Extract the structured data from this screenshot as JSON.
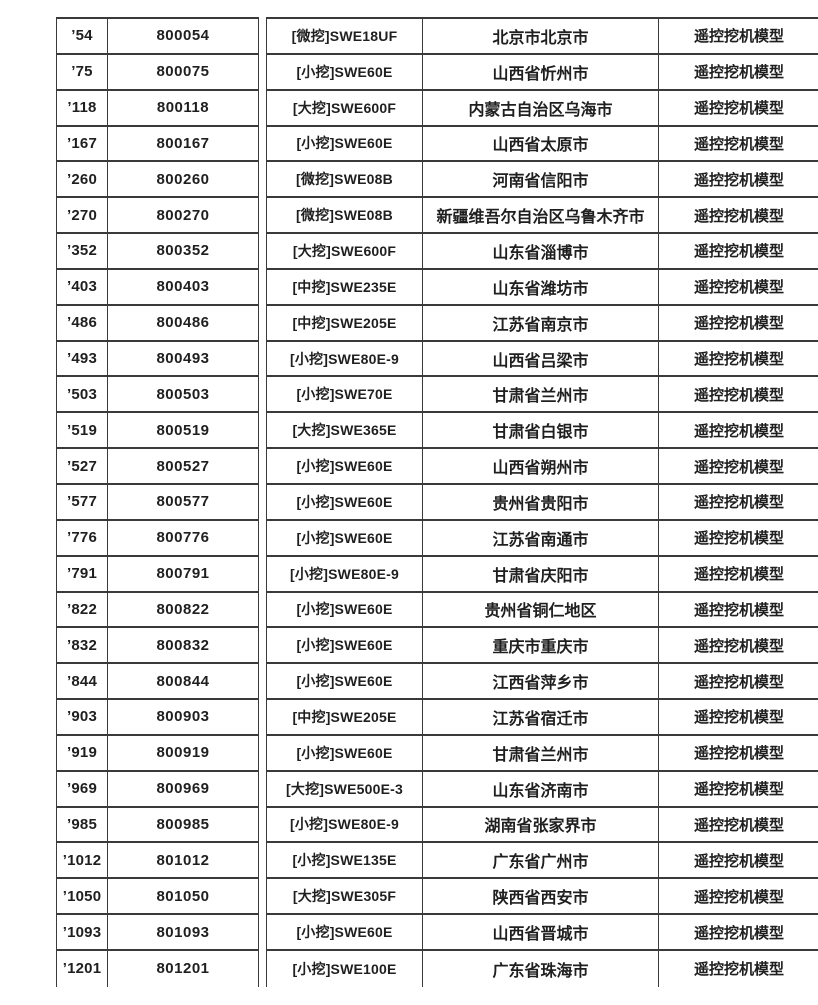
{
  "page": {
    "background_color": "#ffffff",
    "text_color": "#1f1f1f",
    "border_color": "#3a3a3a"
  },
  "table": {
    "rows": [
      {
        "label": "’54",
        "serial": "800054",
        "model": "[微挖]SWE18UF",
        "location": "北京市北京市",
        "category": "遥控挖机模型"
      },
      {
        "label": "’75",
        "serial": "800075",
        "model": "[小挖]SWE60E",
        "location": "山西省忻州市",
        "category": "遥控挖机模型"
      },
      {
        "label": "’118",
        "serial": "800118",
        "model": "[大挖]SWE600F",
        "location": "内蒙古自治区乌海市",
        "category": "遥控挖机模型"
      },
      {
        "label": "’167",
        "serial": "800167",
        "model": "[小挖]SWE60E",
        "location": "山西省太原市",
        "category": "遥控挖机模型"
      },
      {
        "label": "’260",
        "serial": "800260",
        "model": "[微挖]SWE08B",
        "location": "河南省信阳市",
        "category": "遥控挖机模型"
      },
      {
        "label": "’270",
        "serial": "800270",
        "model": "[微挖]SWE08B",
        "location": "新疆维吾尔自治区乌鲁木齐市",
        "category": "遥控挖机模型"
      },
      {
        "label": "’352",
        "serial": "800352",
        "model": "[大挖]SWE600F",
        "location": "山东省淄博市",
        "category": "遥控挖机模型"
      },
      {
        "label": "’403",
        "serial": "800403",
        "model": "[中挖]SWE235E",
        "location": "山东省潍坊市",
        "category": "遥控挖机模型"
      },
      {
        "label": "’486",
        "serial": "800486",
        "model": "[中挖]SWE205E",
        "location": "江苏省南京市",
        "category": "遥控挖机模型"
      },
      {
        "label": "’493",
        "serial": "800493",
        "model": "[小挖]SWE80E-9",
        "location": "山西省吕梁市",
        "category": "遥控挖机模型"
      },
      {
        "label": "’503",
        "serial": "800503",
        "model": "[小挖]SWE70E",
        "location": "甘肃省兰州市",
        "category": "遥控挖机模型"
      },
      {
        "label": "’519",
        "serial": "800519",
        "model": "[大挖]SWE365E",
        "location": "甘肃省白银市",
        "category": "遥控挖机模型"
      },
      {
        "label": "’527",
        "serial": "800527",
        "model": "[小挖]SWE60E",
        "location": "山西省朔州市",
        "category": "遥控挖机模型"
      },
      {
        "label": "’577",
        "serial": "800577",
        "model": "[小挖]SWE60E",
        "location": "贵州省贵阳市",
        "category": "遥控挖机模型"
      },
      {
        "label": "’776",
        "serial": "800776",
        "model": "[小挖]SWE60E",
        "location": "江苏省南通市",
        "category": "遥控挖机模型"
      },
      {
        "label": "’791",
        "serial": "800791",
        "model": "[小挖]SWE80E-9",
        "location": "甘肃省庆阳市",
        "category": "遥控挖机模型"
      },
      {
        "label": "’822",
        "serial": "800822",
        "model": "[小挖]SWE60E",
        "location": "贵州省铜仁地区",
        "category": "遥控挖机模型"
      },
      {
        "label": "’832",
        "serial": "800832",
        "model": "[小挖]SWE60E",
        "location": "重庆市重庆市",
        "category": "遥控挖机模型"
      },
      {
        "label": "’844",
        "serial": "800844",
        "model": "[小挖]SWE60E",
        "location": "江西省萍乡市",
        "category": "遥控挖机模型"
      },
      {
        "label": "’903",
        "serial": "800903",
        "model": "[中挖]SWE205E",
        "location": "江苏省宿迁市",
        "category": "遥控挖机模型"
      },
      {
        "label": "’919",
        "serial": "800919",
        "model": "[小挖]SWE60E",
        "location": "甘肃省兰州市",
        "category": "遥控挖机模型"
      },
      {
        "label": "’969",
        "serial": "800969",
        "model": "[大挖]SWE500E-3",
        "location": "山东省济南市",
        "category": "遥控挖机模型"
      },
      {
        "label": "’985",
        "serial": "800985",
        "model": "[小挖]SWE80E-9",
        "location": "湖南省张家界市",
        "category": "遥控挖机模型"
      },
      {
        "label": "’1012",
        "serial": "801012",
        "model": "[小挖]SWE135E",
        "location": "广东省广州市",
        "category": "遥控挖机模型"
      },
      {
        "label": "’1050",
        "serial": "801050",
        "model": "[大挖]SWE305F",
        "location": "陕西省西安市",
        "category": "遥控挖机模型"
      },
      {
        "label": "’1093",
        "serial": "801093",
        "model": "[小挖]SWE60E",
        "location": "山西省晋城市",
        "category": "遥控挖机模型"
      },
      {
        "label": "’1201",
        "serial": "801201",
        "model": "[小挖]SWE100E",
        "location": "广东省珠海市",
        "category": "遥控挖机模型"
      }
    ]
  }
}
